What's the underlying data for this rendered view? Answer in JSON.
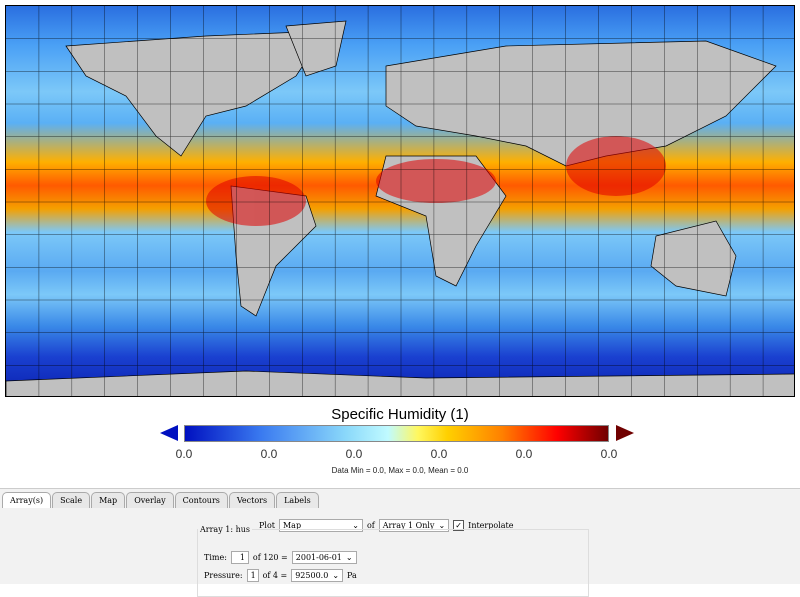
{
  "plot": {
    "title": "Specific Humidity (1)",
    "colorbar_ticks": [
      "0.0",
      "0.0",
      "0.0",
      "0.0",
      "0.0",
      "0.0"
    ],
    "stats": "Data Min = 0.0, Max = 0.0, Mean = 0.0",
    "colors": {
      "low": "#0010c0",
      "high": "#700000",
      "land": "#c0c0c0"
    }
  },
  "tabs": [
    "Array(s)",
    "Scale",
    "Map",
    "Overlay",
    "Contours",
    "Vectors",
    "Labels"
  ],
  "controls": {
    "plot_label": "Plot",
    "plot_value": "Map",
    "of_label": "of",
    "array_value": "Array 1 Only",
    "interpolate_label": "Interpolate",
    "interpolate_checked": true,
    "array_group": "Array 1: hus",
    "time_label": "Time:",
    "time_index": "1",
    "time_of": "of 120 =",
    "time_value": "2001-06-01",
    "pressure_label": "Pressure:",
    "pressure_index": "1",
    "pressure_of": "of 4 =",
    "pressure_value": "92500.0",
    "pressure_unit": "Pa"
  }
}
